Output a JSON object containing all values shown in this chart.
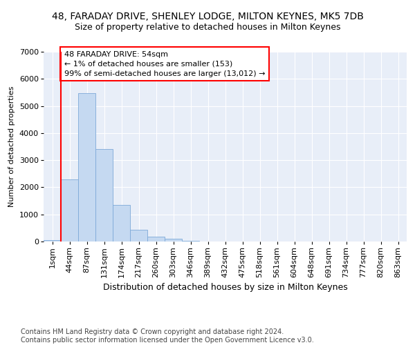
{
  "title1": "48, FARADAY DRIVE, SHENLEY LODGE, MILTON KEYNES, MK5 7DB",
  "title2": "Size of property relative to detached houses in Milton Keynes",
  "xlabel": "Distribution of detached houses by size in Milton Keynes",
  "ylabel": "Number of detached properties",
  "categories": [
    "1sqm",
    "44sqm",
    "87sqm",
    "131sqm",
    "174sqm",
    "217sqm",
    "260sqm",
    "303sqm",
    "346sqm",
    "389sqm",
    "432sqm",
    "475sqm",
    "518sqm",
    "561sqm",
    "604sqm",
    "648sqm",
    "691sqm",
    "734sqm",
    "777sqm",
    "820sqm",
    "863sqm"
  ],
  "values": [
    50,
    2280,
    5480,
    3400,
    1350,
    440,
    170,
    90,
    30,
    0,
    0,
    0,
    0,
    0,
    0,
    0,
    0,
    0,
    0,
    0,
    0
  ],
  "bar_color": "#c5d9f1",
  "bar_edge_color": "#7da9d8",
  "vline_color": "red",
  "vline_x_index": 1,
  "annotation_text": "48 FARADAY DRIVE: 54sqm\n← 1% of detached houses are smaller (153)\n99% of semi-detached houses are larger (13,012) →",
  "annotation_box_color": "white",
  "annotation_box_edge_color": "red",
  "ylim": [
    0,
    7000
  ],
  "yticks": [
    0,
    1000,
    2000,
    3000,
    4000,
    5000,
    6000,
    7000
  ],
  "footer": "Contains HM Land Registry data © Crown copyright and database right 2024.\nContains public sector information licensed under the Open Government Licence v3.0.",
  "background_color": "#e8eef8",
  "grid_color": "white",
  "title1_fontsize": 10,
  "title2_fontsize": 9,
  "xlabel_fontsize": 9,
  "ylabel_fontsize": 8,
  "tick_fontsize": 8,
  "annotation_fontsize": 8,
  "footer_fontsize": 7
}
